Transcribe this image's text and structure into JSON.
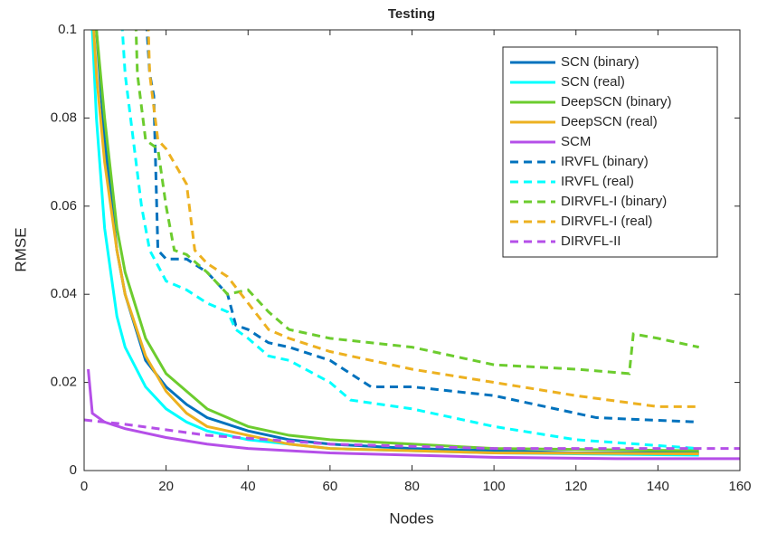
{
  "chart_data": {
    "type": "line",
    "title": "Testing",
    "x_label": "Nodes",
    "y_label": "RMSE",
    "xlim": [
      0,
      160
    ],
    "xticks": [
      0,
      20,
      40,
      60,
      80,
      100,
      120,
      140,
      160
    ],
    "ylim": [
      0,
      0.1
    ],
    "yticks": [
      0,
      0.02,
      0.04,
      0.06,
      0.08,
      0.1
    ],
    "grid": false,
    "legend": "upper right",
    "series": [
      {
        "name": "SCN (binary)",
        "color": "#0072bd",
        "dash": false,
        "x": [
          1,
          3,
          5,
          8,
          10,
          15,
          20,
          25,
          30,
          40,
          50,
          60,
          80,
          100,
          120,
          150
        ],
        "values": [
          0.12,
          0.1,
          0.075,
          0.05,
          0.04,
          0.025,
          0.019,
          0.015,
          0.012,
          0.009,
          0.007,
          0.006,
          0.005,
          0.0045,
          0.004,
          0.004
        ]
      },
      {
        "name": "SCN (real)",
        "color": "#00ffff",
        "dash": false,
        "x": [
          1,
          3,
          5,
          8,
          10,
          15,
          20,
          25,
          30,
          40,
          50,
          60,
          80,
          100,
          150
        ],
        "values": [
          0.12,
          0.08,
          0.055,
          0.035,
          0.028,
          0.019,
          0.014,
          0.011,
          0.009,
          0.007,
          0.006,
          0.005,
          0.0045,
          0.004,
          0.0035
        ]
      },
      {
        "name": "DeepSCN (binary)",
        "color": "#6ccc2e",
        "dash": false,
        "x": [
          1,
          3,
          5,
          8,
          10,
          15,
          20,
          25,
          30,
          40,
          50,
          60,
          80,
          100,
          150
        ],
        "values": [
          0.12,
          0.1,
          0.08,
          0.055,
          0.045,
          0.03,
          0.022,
          0.018,
          0.014,
          0.01,
          0.008,
          0.007,
          0.006,
          0.005,
          0.0045
        ]
      },
      {
        "name": "DeepSCN (real)",
        "color": "#edb120",
        "dash": false,
        "x": [
          1,
          3,
          5,
          8,
          10,
          15,
          20,
          25,
          30,
          40,
          50,
          60,
          80,
          100,
          150
        ],
        "values": [
          0.12,
          0.09,
          0.07,
          0.05,
          0.04,
          0.026,
          0.018,
          0.013,
          0.01,
          0.008,
          0.006,
          0.005,
          0.0045,
          0.004,
          0.0038
        ]
      },
      {
        "name": "SCM",
        "color": "#b54fe8",
        "dash": false,
        "x": [
          1,
          2,
          5,
          10,
          20,
          30,
          40,
          60,
          80,
          100,
          130,
          160
        ],
        "values": [
          0.023,
          0.013,
          0.011,
          0.0095,
          0.0075,
          0.006,
          0.005,
          0.004,
          0.0035,
          0.003,
          0.0027,
          0.0027
        ]
      },
      {
        "name": "IRVFL (binary)",
        "color": "#0072bd",
        "dash": true,
        "x": [
          14,
          16,
          17,
          18,
          20,
          25,
          30,
          35,
          37,
          40,
          45,
          50,
          60,
          70,
          80,
          90,
          100,
          110,
          120,
          125,
          150
        ],
        "values": [
          0.12,
          0.09,
          0.085,
          0.05,
          0.048,
          0.048,
          0.045,
          0.04,
          0.033,
          0.032,
          0.029,
          0.028,
          0.025,
          0.019,
          0.019,
          0.018,
          0.017,
          0.015,
          0.013,
          0.012,
          0.011
        ]
      },
      {
        "name": "IRVFL (real)",
        "color": "#00ffff",
        "dash": true,
        "x": [
          8,
          10,
          12,
          14,
          16,
          20,
          25,
          30,
          35,
          37,
          40,
          45,
          50,
          60,
          65,
          80,
          100,
          120,
          150
        ],
        "values": [
          0.12,
          0.09,
          0.075,
          0.06,
          0.05,
          0.043,
          0.041,
          0.038,
          0.036,
          0.032,
          0.03,
          0.026,
          0.025,
          0.02,
          0.016,
          0.014,
          0.01,
          0.007,
          0.005
        ]
      },
      {
        "name": "DIRVFL-I (binary)",
        "color": "#6ccc2e",
        "dash": true,
        "x": [
          12,
          13,
          15,
          18,
          20,
          22,
          25,
          30,
          35,
          40,
          45,
          50,
          55,
          60,
          80,
          90,
          100,
          120,
          133,
          134,
          140,
          150
        ],
        "values": [
          0.12,
          0.09,
          0.075,
          0.073,
          0.06,
          0.05,
          0.049,
          0.045,
          0.04,
          0.041,
          0.036,
          0.032,
          0.031,
          0.03,
          0.028,
          0.026,
          0.024,
          0.023,
          0.022,
          0.031,
          0.03,
          0.028
        ]
      },
      {
        "name": "DIRVFL-I (real)",
        "color": "#edb120",
        "dash": true,
        "x": [
          15,
          16,
          18,
          20,
          25,
          27,
          30,
          35,
          40,
          45,
          50,
          60,
          80,
          100,
          120,
          140,
          150
        ],
        "values": [
          0.12,
          0.09,
          0.075,
          0.073,
          0.065,
          0.05,
          0.047,
          0.044,
          0.038,
          0.032,
          0.03,
          0.027,
          0.023,
          0.02,
          0.017,
          0.0145,
          0.0145
        ]
      },
      {
        "name": "DIRVFL-II",
        "color": "#b54fe8",
        "dash": true,
        "x": [
          0,
          10,
          30,
          60,
          100,
          160
        ],
        "values": [
          0.0115,
          0.0105,
          0.008,
          0.006,
          0.005,
          0.005
        ]
      }
    ]
  }
}
